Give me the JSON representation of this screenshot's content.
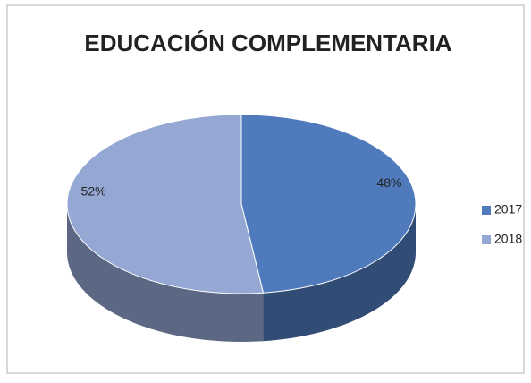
{
  "chart_data": {
    "type": "pie3d",
    "title": "EDUCACIÓN COMPLEMENTARIA",
    "categories": [
      "2017",
      "2018"
    ],
    "values": [
      48,
      52
    ],
    "value_labels": [
      "48%",
      "52%"
    ],
    "colors": [
      "#4f7bbd",
      "#94a8d3"
    ],
    "legend": "right"
  }
}
